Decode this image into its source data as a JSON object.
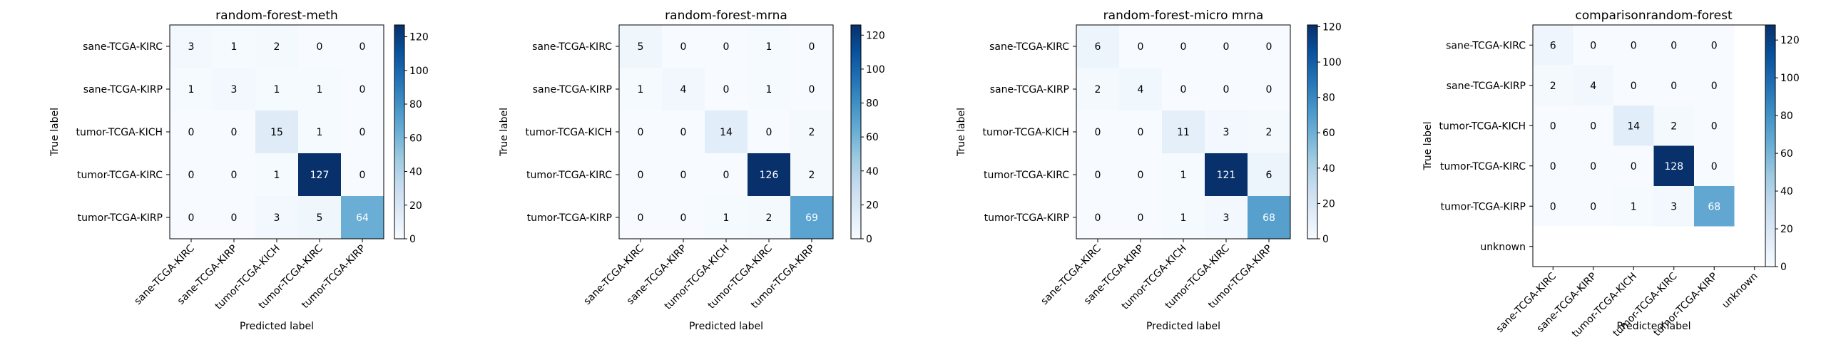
{
  "chart_data": [
    {
      "type": "heatmap",
      "title": "random-forest-meth",
      "xlabel": "Predicted label",
      "ylabel": "True label",
      "row_labels": [
        "sane-TCGA-KIRC",
        "sane-TCGA-KIRP",
        "tumor-TCGA-KICH",
        "tumor-TCGA-KIRC",
        "tumor-TCGA-KIRP"
      ],
      "col_labels": [
        "sane-TCGA-KIRC",
        "sane-TCGA-KIRP",
        "tumor-TCGA-KICH",
        "tumor-TCGA-KIRC",
        "tumor-TCGA-KIRP"
      ],
      "matrix": [
        [
          3,
          1,
          2,
          0,
          0
        ],
        [
          1,
          3,
          1,
          1,
          0
        ],
        [
          0,
          0,
          15,
          1,
          0
        ],
        [
          0,
          0,
          1,
          127,
          0
        ],
        [
          0,
          0,
          3,
          5,
          64
        ]
      ],
      "vmax": 127,
      "colorbar_ticks": [
        0,
        20,
        40,
        60,
        80,
        100,
        120
      ]
    },
    {
      "type": "heatmap",
      "title": "random-forest-mrna",
      "xlabel": "Predicted label",
      "ylabel": "True label",
      "row_labels": [
        "sane-TCGA-KIRC",
        "sane-TCGA-KIRP",
        "tumor-TCGA-KICH",
        "tumor-TCGA-KIRC",
        "tumor-TCGA-KIRP"
      ],
      "col_labels": [
        "sane-TCGA-KIRC",
        "sane-TCGA-KIRP",
        "tumor-TCGA-KICH",
        "tumor-TCGA-KIRC",
        "tumor-TCGA-KIRP"
      ],
      "matrix": [
        [
          5,
          0,
          0,
          1,
          0
        ],
        [
          1,
          4,
          0,
          1,
          0
        ],
        [
          0,
          0,
          14,
          0,
          2
        ],
        [
          0,
          0,
          0,
          126,
          2
        ],
        [
          0,
          0,
          1,
          2,
          69
        ]
      ],
      "vmax": 126,
      "colorbar_ticks": [
        0,
        20,
        40,
        60,
        80,
        100,
        120
      ]
    },
    {
      "type": "heatmap",
      "title": "random-forest-micro mrna",
      "xlabel": "Predicted label",
      "ylabel": "True label",
      "row_labels": [
        "sane-TCGA-KIRC",
        "sane-TCGA-KIRP",
        "tumor-TCGA-KICH",
        "tumor-TCGA-KIRC",
        "tumor-TCGA-KIRP"
      ],
      "col_labels": [
        "sane-TCGA-KIRC",
        "sane-TCGA-KIRP",
        "tumor-TCGA-KICH",
        "tumor-TCGA-KIRC",
        "tumor-TCGA-KIRP"
      ],
      "matrix": [
        [
          6,
          0,
          0,
          0,
          0
        ],
        [
          2,
          4,
          0,
          0,
          0
        ],
        [
          0,
          0,
          11,
          3,
          2
        ],
        [
          0,
          0,
          1,
          121,
          6
        ],
        [
          0,
          0,
          1,
          3,
          68
        ]
      ],
      "vmax": 121,
      "colorbar_ticks": [
        0,
        20,
        40,
        60,
        80,
        100,
        120
      ]
    },
    {
      "type": "heatmap",
      "title": "comparisonrandom-forest",
      "xlabel": "Predicted label",
      "ylabel": "True label",
      "row_labels": [
        "sane-TCGA-KIRC",
        "sane-TCGA-KIRP",
        "tumor-TCGA-KICH",
        "tumor-TCGA-KIRC",
        "tumor-TCGA-KIRP",
        "unknown"
      ],
      "col_labels": [
        "sane-TCGA-KIRC",
        "sane-TCGA-KIRP",
        "tumor-TCGA-KICH",
        "tumor-TCGA-KIRC",
        "tumor-TCGA-KIRP",
        "unknown"
      ],
      "matrix": [
        [
          6,
          0,
          0,
          0,
          0,
          null
        ],
        [
          2,
          4,
          0,
          0,
          0,
          null
        ],
        [
          0,
          0,
          14,
          2,
          0,
          null
        ],
        [
          0,
          0,
          0,
          128,
          0,
          null
        ],
        [
          0,
          0,
          1,
          3,
          68,
          null
        ],
        [
          null,
          null,
          null,
          null,
          null,
          null
        ]
      ],
      "vmax": 128,
      "colorbar_ticks": [
        0,
        20,
        40,
        60,
        80,
        100,
        120
      ]
    }
  ]
}
